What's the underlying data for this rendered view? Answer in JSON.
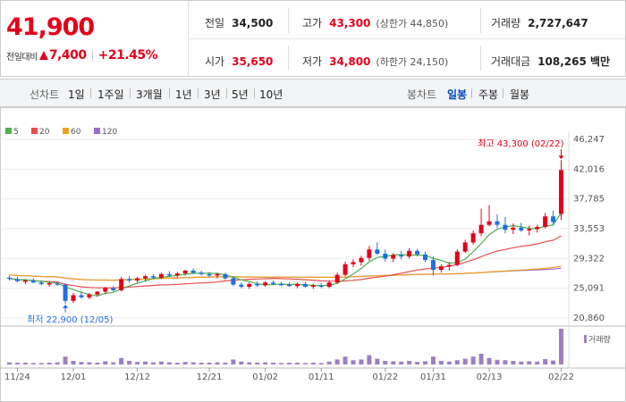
{
  "quote": {
    "price": "41,900",
    "change_label": "전일대비",
    "change_value": "7,400",
    "change_pct": "+21.45%",
    "prev_close_label": "전일",
    "prev_close": "34,500",
    "open_label": "시가",
    "open": "35,650",
    "high_label": "고가",
    "high": "43,300",
    "upper_limit": "(상한가 44,850)",
    "low_label": "저가",
    "low": "34,800",
    "lower_limit": "(하한가 24,150)",
    "volume_label": "거래량",
    "volume": "2,727,647",
    "amount_label": "거래대금",
    "amount": "108,265 백만"
  },
  "toolbar": {
    "line_label": "선차트",
    "periods": [
      "1일",
      "1주일",
      "3개월",
      "1년",
      "3년",
      "5년",
      "10년"
    ],
    "candle_label": "봉차트",
    "candle_types": [
      "일봉",
      "주봉",
      "월봉"
    ],
    "active_candle": "일봉"
  },
  "colors": {
    "up": "#e3001b",
    "down": "#1e6fe0",
    "ma5": "#4caf50",
    "ma20": "#e84c4c",
    "ma60": "#f0a020",
    "ma120": "#9b6bd0",
    "volume": "#9c7fc4"
  },
  "chart_data": {
    "type": "candlestick",
    "legend": [
      "5",
      "20",
      "60",
      "120"
    ],
    "y_ticks": [
      "46,247",
      "42,016",
      "37,785",
      "33,553",
      "29,322",
      "25,091",
      "20,860"
    ],
    "ylim": [
      20860,
      46247
    ],
    "x_ticks": [
      "11/24",
      "12/01",
      "12/12",
      "12/21",
      "01/02",
      "01/11",
      "01/22",
      "01/31",
      "02/13",
      "02/22"
    ],
    "high_annotation": "최고 43,300 (02/22)",
    "low_annotation": "최저 22,900 (12/05)",
    "volume_legend": "거래량",
    "candles": [
      [
        26600,
        26900,
        26200,
        26500
      ],
      [
        26400,
        26700,
        25900,
        26100
      ],
      [
        26100,
        26400,
        25700,
        26200
      ],
      [
        26200,
        26500,
        25800,
        25900
      ],
      [
        25900,
        26200,
        25500,
        25700
      ],
      [
        25700,
        26000,
        25300,
        25800
      ],
      [
        25800,
        26100,
        25400,
        25600
      ],
      [
        25600,
        25800,
        22900,
        23300
      ],
      [
        23300,
        24400,
        23000,
        24100
      ],
      [
        24100,
        24500,
        23600,
        23800
      ],
      [
        23800,
        24400,
        23500,
        24200
      ],
      [
        24200,
        24700,
        23900,
        24600
      ],
      [
        24600,
        25300,
        24300,
        25100
      ],
      [
        25100,
        25400,
        24600,
        24800
      ],
      [
        24800,
        26700,
        24600,
        26400
      ],
      [
        26400,
        26800,
        25900,
        26200
      ],
      [
        26200,
        26700,
        25900,
        26500
      ],
      [
        26500,
        27000,
        26100,
        26800
      ],
      [
        26800,
        27100,
        26400,
        26600
      ],
      [
        26600,
        27300,
        26400,
        27100
      ],
      [
        27100,
        27500,
        26700,
        26900
      ],
      [
        26900,
        27400,
        26600,
        27200
      ],
      [
        27200,
        27700,
        26900,
        27600
      ],
      [
        27600,
        27900,
        27100,
        27300
      ],
      [
        27300,
        27600,
        26900,
        27100
      ],
      [
        27100,
        27400,
        26700,
        26900
      ],
      [
        26900,
        27300,
        26500,
        27100
      ],
      [
        27100,
        27300,
        26300,
        26500
      ],
      [
        26500,
        26800,
        25400,
        25600
      ],
      [
        25600,
        25900,
        25100,
        25300
      ],
      [
        25300,
        25900,
        25000,
        25700
      ],
      [
        25700,
        26100,
        25300,
        25500
      ],
      [
        25500,
        26100,
        25300,
        25900
      ],
      [
        25900,
        26200,
        25500,
        25700
      ],
      [
        25700,
        26000,
        25400,
        25600
      ],
      [
        25600,
        25900,
        25300,
        25400
      ],
      [
        25400,
        25900,
        25100,
        25700
      ],
      [
        25700,
        26000,
        25200,
        25300
      ],
      [
        25300,
        25700,
        25000,
        25500
      ],
      [
        25500,
        25800,
        25100,
        25300
      ],
      [
        25300,
        26200,
        25100,
        25900
      ],
      [
        25900,
        27300,
        25700,
        27000
      ],
      [
        27000,
        28900,
        26800,
        28500
      ],
      [
        28500,
        29200,
        28100,
        28800
      ],
      [
        28800,
        29700,
        28300,
        29400
      ],
      [
        29400,
        31100,
        29000,
        30600
      ],
      [
        30600,
        31600,
        29800,
        30000
      ],
      [
        30000,
        30600,
        28900,
        29300
      ],
      [
        29300,
        30100,
        28800,
        29800
      ],
      [
        29800,
        30400,
        29200,
        29600
      ],
      [
        29600,
        30800,
        29300,
        30400
      ],
      [
        30400,
        30700,
        29600,
        29900
      ],
      [
        29900,
        30300,
        28800,
        29100
      ],
      [
        29100,
        29600,
        26900,
        27700
      ],
      [
        27700,
        28500,
        27300,
        28200
      ],
      [
        28200,
        28800,
        27600,
        28400
      ],
      [
        28400,
        30600,
        28200,
        30300
      ],
      [
        30300,
        32000,
        30100,
        31600
      ],
      [
        31600,
        33300,
        31300,
        32900
      ],
      [
        32900,
        36400,
        32500,
        34100
      ],
      [
        34100,
        36900,
        33900,
        34600
      ],
      [
        34600,
        35600,
        33600,
        34100
      ],
      [
        34100,
        35200,
        32900,
        33400
      ],
      [
        33400,
        34300,
        32800,
        33700
      ],
      [
        33700,
        34400,
        33100,
        33300
      ],
      [
        33300,
        34000,
        32600,
        33500
      ],
      [
        33500,
        34100,
        33000,
        33800
      ],
      [
        33800,
        35800,
        33600,
        35300
      ],
      [
        35300,
        36100,
        34100,
        34500
      ],
      [
        35650,
        43300,
        34800,
        41900
      ]
    ],
    "volumes": [
      0.06,
      0.05,
      0.05,
      0.04,
      0.04,
      0.05,
      0.06,
      0.22,
      0.1,
      0.07,
      0.06,
      0.05,
      0.09,
      0.06,
      0.18,
      0.1,
      0.07,
      0.08,
      0.06,
      0.08,
      0.06,
      0.05,
      0.07,
      0.06,
      0.05,
      0.05,
      0.06,
      0.05,
      0.14,
      0.08,
      0.06,
      0.05,
      0.06,
      0.05,
      0.04,
      0.05,
      0.05,
      0.04,
      0.05,
      0.04,
      0.08,
      0.14,
      0.22,
      0.12,
      0.14,
      0.26,
      0.16,
      0.1,
      0.09,
      0.08,
      0.1,
      0.07,
      0.09,
      0.22,
      0.1,
      0.08,
      0.12,
      0.16,
      0.22,
      0.3,
      0.18,
      0.13,
      0.12,
      0.1,
      0.08,
      0.09,
      0.08,
      0.15,
      0.11,
      1.0
    ]
  }
}
